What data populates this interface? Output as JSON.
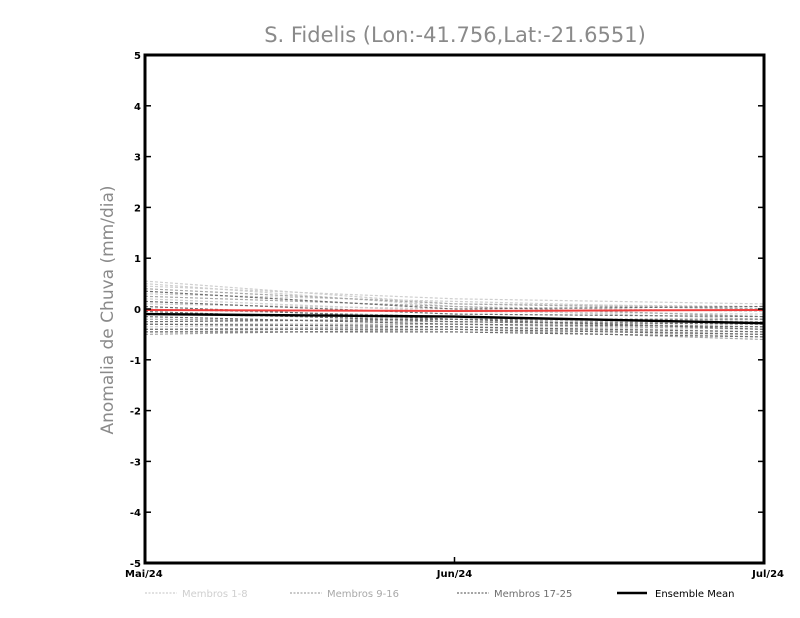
{
  "chart_data": {
    "type": "line",
    "title": "S. Fidelis (Lon:-41.756,Lat:-21.6551)",
    "xlabel": "",
    "ylabel": "Anomalia de Chuva (mm/dia)",
    "categories": [
      "Mai/24",
      "Jun/24",
      "Jul/24"
    ],
    "ylim": [
      -5,
      5
    ],
    "yticks": [
      "5",
      "4",
      "3",
      "2",
      "1",
      "0",
      "-1",
      "-2",
      "-3",
      "-4",
      "-5"
    ],
    "series": [
      {
        "name": "Membros 1-8",
        "group": "Membros 1-8",
        "values": [
          0.55,
          0.1,
          0.05
        ]
      },
      {
        "name": "Membros 1-8",
        "group": "Membros 1-8",
        "values": [
          0.5,
          0.05,
          -0.05
        ]
      },
      {
        "name": "Membros 1-8",
        "group": "Membros 1-8",
        "values": [
          0.45,
          0.2,
          0.1
        ]
      },
      {
        "name": "Membros 1-8",
        "group": "Membros 1-8",
        "values": [
          0.3,
          0.15,
          0.0
        ]
      },
      {
        "name": "Membros 1-8",
        "group": "Membros 1-8",
        "values": [
          0.2,
          -0.05,
          -0.1
        ]
      },
      {
        "name": "Membros 1-8",
        "group": "Membros 1-8",
        "values": [
          0.1,
          0.0,
          -0.2
        ]
      },
      {
        "name": "Membros 1-8",
        "group": "Membros 1-8",
        "values": [
          -0.35,
          -0.3,
          -0.45
        ]
      },
      {
        "name": "Membros 1-8",
        "group": "Membros 1-8",
        "values": [
          -0.45,
          -0.35,
          -0.55
        ]
      },
      {
        "name": "Membros 9-16",
        "group": "Membros 9-16",
        "values": [
          0.4,
          0.1,
          0.0
        ]
      },
      {
        "name": "Membros 9-16",
        "group": "Membros 9-16",
        "values": [
          0.25,
          0.05,
          -0.15
        ]
      },
      {
        "name": "Membros 9-16",
        "group": "Membros 9-16",
        "values": [
          0.0,
          -0.15,
          -0.25
        ]
      },
      {
        "name": "Membros 9-16",
        "group": "Membros 9-16",
        "values": [
          -0.1,
          -0.2,
          -0.3
        ]
      },
      {
        "name": "Membros 9-16",
        "group": "Membros 9-16",
        "values": [
          -0.2,
          -0.25,
          -0.35
        ]
      },
      {
        "name": "Membros 9-16",
        "group": "Membros 9-16",
        "values": [
          -0.3,
          -0.3,
          -0.4
        ]
      },
      {
        "name": "Membros 9-16",
        "group": "Membros 9-16",
        "values": [
          -0.4,
          -0.35,
          -0.5
        ]
      },
      {
        "name": "Membros 9-16",
        "group": "Membros 9-16",
        "values": [
          -0.5,
          -0.4,
          -0.6
        ]
      },
      {
        "name": "Membros 17-25",
        "group": "Membros 17-25",
        "values": [
          0.35,
          0.0,
          0.05
        ]
      },
      {
        "name": "Membros 17-25",
        "group": "Membros 17-25",
        "values": [
          0.15,
          -0.1,
          -0.15
        ]
      },
      {
        "name": "Membros 17-25",
        "group": "Membros 17-25",
        "values": [
          0.05,
          -0.2,
          -0.2
        ]
      },
      {
        "name": "Membros 17-25",
        "group": "Membros 17-25",
        "values": [
          -0.05,
          -0.25,
          -0.3
        ]
      },
      {
        "name": "Membros 17-25",
        "group": "Membros 17-25",
        "values": [
          -0.15,
          -0.3,
          -0.35
        ]
      },
      {
        "name": "Membros 17-25",
        "group": "Membros 17-25",
        "values": [
          -0.25,
          -0.2,
          -0.4
        ]
      },
      {
        "name": "Membros 17-25",
        "group": "Membros 17-25",
        "values": [
          -0.3,
          -0.35,
          -0.45
        ]
      },
      {
        "name": "Membros 17-25",
        "group": "Membros 17-25",
        "values": [
          -0.4,
          -0.4,
          -0.5
        ]
      },
      {
        "name": "Membros 17-25",
        "group": "Membros 17-25",
        "values": [
          -0.45,
          -0.45,
          -0.55
        ]
      },
      {
        "name": "Red line",
        "group": "Red",
        "values": [
          -0.02,
          -0.04,
          -0.02
        ]
      },
      {
        "name": "Ensemble Mean",
        "group": "Ensemble Mean",
        "values": [
          -0.1,
          -0.15,
          -0.28
        ]
      }
    ],
    "legend": [
      {
        "label": "Membros 1-8",
        "color": "#cfcfcf"
      },
      {
        "label": "Membros 9-16",
        "color": "#a8a8a8"
      },
      {
        "label": "Membros 17-25",
        "color": "#6e6e6e"
      },
      {
        "label": "Ensemble Mean",
        "color": "#000000"
      }
    ],
    "colors": {
      "Membros 1-8": "#cfcfcf",
      "Membros 9-16": "#a8a8a8",
      "Membros 17-25": "#6e6e6e",
      "Red": "#f03c3c",
      "Ensemble Mean": "#000000"
    }
  }
}
